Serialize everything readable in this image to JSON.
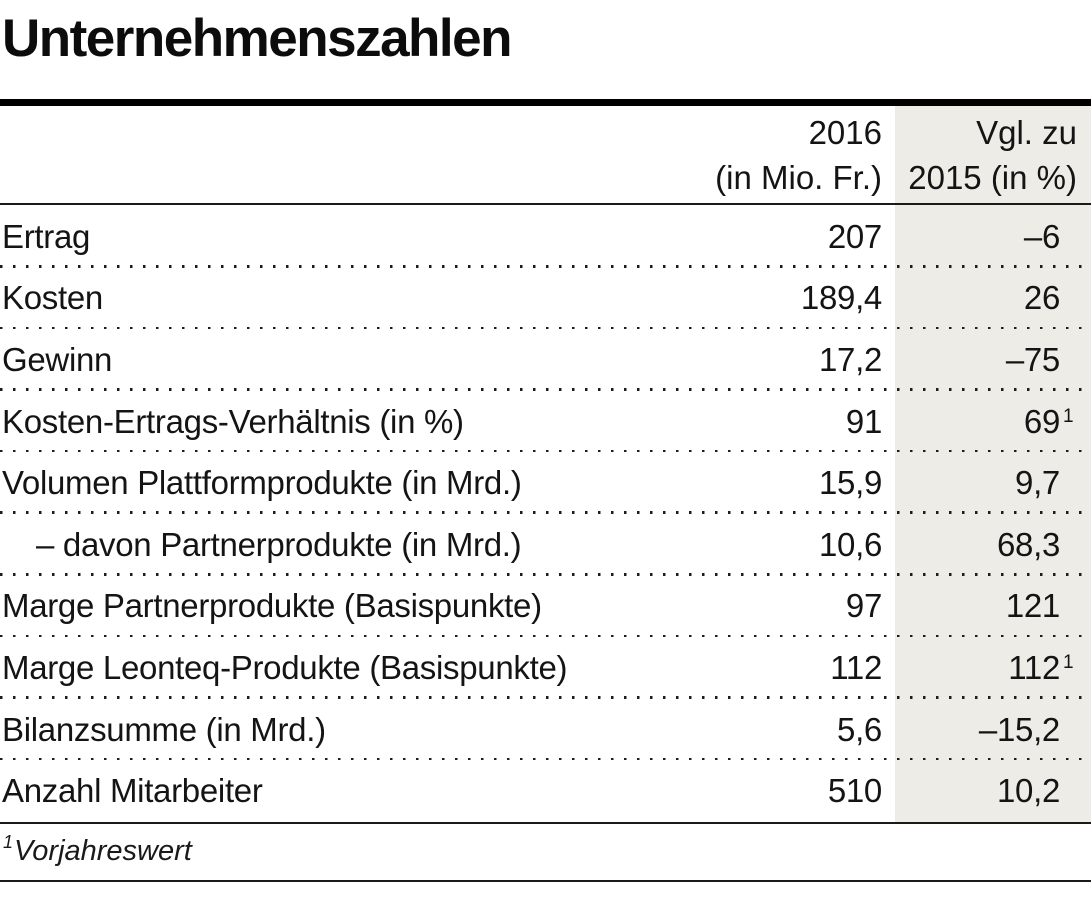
{
  "title": "Unternehmenszahlen",
  "table": {
    "header": {
      "col_value_line1": "2016",
      "col_value_line2": "(in Mio. Fr.)",
      "col_compare_line1": "Vgl. zu",
      "col_compare_line2": "2015 (in %)"
    },
    "rows": [
      {
        "label": "Ertrag",
        "value_2016": "207",
        "vs_2015": "–6",
        "footnote_marker": ""
      },
      {
        "label": "Kosten",
        "value_2016": "189,4",
        "vs_2015": "26",
        "footnote_marker": ""
      },
      {
        "label": "Gewinn",
        "value_2016": "17,2",
        "vs_2015": "–75",
        "footnote_marker": ""
      },
      {
        "label": "Kosten-Ertrags-Verhältnis (in %)",
        "value_2016": "91",
        "vs_2015": "69",
        "footnote_marker": "1"
      },
      {
        "label": "Volumen Plattformprodukte (in Mrd.)",
        "value_2016": "15,9",
        "vs_2015": "9,7",
        "footnote_marker": ""
      },
      {
        "label": "– davon Partnerprodukte (in Mrd.)",
        "value_2016": "10,6",
        "vs_2015": "68,3",
        "footnote_marker": ""
      },
      {
        "label": "Marge Partnerprodukte (Basispunkte)",
        "value_2016": "97",
        "vs_2015": "121",
        "footnote_marker": ""
      },
      {
        "label": "Marge Leonteq-Produkte (Basispunkte)",
        "value_2016": "112",
        "vs_2015": "112",
        "footnote_marker": "1"
      },
      {
        "label": "Bilanzsumme (in Mrd.)",
        "value_2016": "5,6",
        "vs_2015": "–15,2",
        "footnote_marker": ""
      },
      {
        "label": "Anzahl Mitarbeiter",
        "value_2016": "510",
        "vs_2015": "10,2",
        "footnote_marker": ""
      }
    ]
  },
  "footnote": {
    "marker": "1",
    "text": "Vorjahreswert"
  },
  "colors": {
    "highlight_column_bg": "#edece6",
    "text": "#141414",
    "rule": "#000000"
  },
  "chart_data": {
    "type": "table",
    "title": "Unternehmenszahlen",
    "columns": [
      "",
      "2016 (in Mio. Fr.)",
      "Vgl. zu 2015 (in %)"
    ],
    "categories": [
      "Ertrag",
      "Kosten",
      "Gewinn",
      "Kosten-Ertrags-Verhältnis (in %)",
      "Volumen Plattformprodukte (in Mrd.)",
      "– davon Partnerprodukte (in Mrd.)",
      "Marge Partnerprodukte (Basispunkte)",
      "Marge Leonteq-Produkte (Basispunkte)",
      "Bilanzsumme (in Mrd.)",
      "Anzahl Mitarbeiter"
    ],
    "series": [
      {
        "name": "2016 (in Mio. Fr.)",
        "values": [
          207,
          189.4,
          17.2,
          91,
          15.9,
          10.6,
          97,
          112,
          5.6,
          510
        ]
      },
      {
        "name": "Vgl. zu 2015 (in %)",
        "values": [
          -6,
          26,
          -75,
          69,
          9.7,
          68.3,
          121,
          112,
          -15.2,
          10.2
        ]
      }
    ],
    "annotations": [
      "Rows 'Kosten-Ertrags-Verhältnis' and 'Marge Leonteq-Produkte' carry footnote 1 on the comparison value",
      "Footnote 1: Vorjahreswert (prior-year value)"
    ],
    "legend_position": "none",
    "grid": "dotted row separators"
  }
}
